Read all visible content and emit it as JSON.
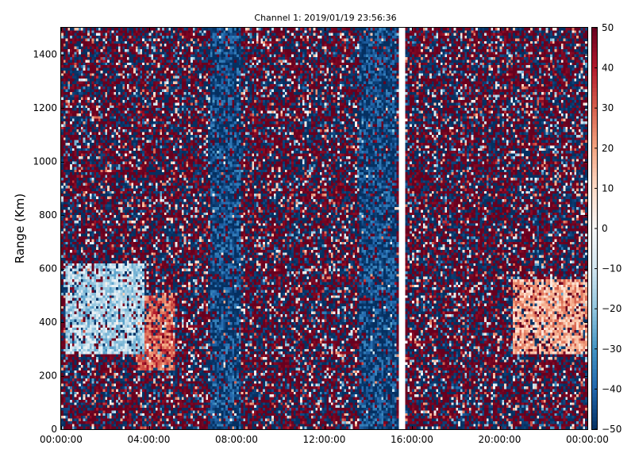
{
  "chart_data": {
    "type": "heatmap",
    "title": "Channel 1: 2019/01/19 23:56:36",
    "xlabel": "",
    "ylabel": "Range (Km)",
    "x_ticks": [
      "00:00:00",
      "04:00:00",
      "08:00:00",
      "12:00:00",
      "16:00:00",
      "20:00:00",
      "00:00:00"
    ],
    "x_range_hours": [
      0,
      24
    ],
    "y_ticks": [
      0,
      200,
      400,
      600,
      800,
      1000,
      1200,
      1400
    ],
    "ylim": [
      0,
      1500
    ],
    "colorbar": {
      "ticks": [
        50,
        40,
        30,
        20,
        10,
        0,
        -10,
        -20,
        -30,
        -40,
        -50
      ],
      "range": [
        -50,
        50
      ],
      "colormap": "RdBu_r"
    },
    "data_gap_hours": [
      15.4,
      15.65
    ],
    "features": [
      {
        "name": "negative plume",
        "x_hours": [
          0.2,
          3.8
        ],
        "range_km": [
          280,
          620
        ],
        "value": -15
      },
      {
        "name": "positive streak",
        "x_hours": [
          3.4,
          5.2
        ],
        "range_km": [
          220,
          500
        ],
        "value": 30
      },
      {
        "name": "positive plume",
        "x_hours": [
          20.6,
          24.0
        ],
        "range_km": [
          280,
          560
        ],
        "value": 18
      },
      {
        "name": "negative band",
        "x_hours": [
          6.8,
          8.2
        ],
        "range_km": [
          0,
          1500
        ],
        "value": -45
      },
      {
        "name": "negative band",
        "x_hours": [
          13.6,
          15.3
        ],
        "range_km": [
          0,
          1500
        ],
        "value": -45
      }
    ],
    "grid": false
  },
  "colors": {
    "low": "#053061",
    "high": "#67001f",
    "mid": "#f7f7f7",
    "gap": "#ffffff"
  }
}
